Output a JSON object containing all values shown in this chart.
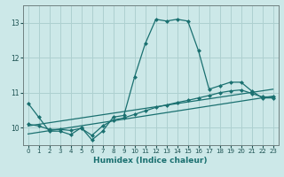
{
  "title": "",
  "xlabel": "Humidex (Indice chaleur)",
  "bg_color": "#cce8e8",
  "line_color": "#1a7070",
  "xlim": [
    -0.5,
    23.5
  ],
  "ylim": [
    9.5,
    13.5
  ],
  "yticks": [
    10,
    11,
    12,
    13
  ],
  "xticks": [
    0,
    1,
    2,
    3,
    4,
    5,
    6,
    7,
    8,
    9,
    10,
    11,
    12,
    13,
    14,
    15,
    16,
    17,
    18,
    19,
    20,
    21,
    22,
    23
  ],
  "main_x": [
    0,
    1,
    2,
    3,
    4,
    5,
    6,
    7,
    8,
    9,
    10,
    11,
    12,
    13,
    14,
    15,
    16,
    17,
    18,
    19,
    20,
    21,
    22,
    23
  ],
  "main_y": [
    10.7,
    10.3,
    9.9,
    9.9,
    9.8,
    10.0,
    9.65,
    9.9,
    10.3,
    10.35,
    11.45,
    12.4,
    13.1,
    13.05,
    13.1,
    13.05,
    12.2,
    11.1,
    11.2,
    11.3,
    11.3,
    11.05,
    10.85,
    10.85
  ],
  "line2_x": [
    0,
    1,
    2,
    3,
    4,
    5,
    6,
    7,
    8,
    9,
    10,
    11,
    12,
    13,
    14,
    15,
    16,
    17,
    18,
    19,
    20,
    21,
    22,
    23
  ],
  "line2_y": [
    10.1,
    10.05,
    9.95,
    9.95,
    9.92,
    9.98,
    9.78,
    10.05,
    10.22,
    10.28,
    10.38,
    10.48,
    10.58,
    10.65,
    10.72,
    10.78,
    10.85,
    10.92,
    11.0,
    11.05,
    11.08,
    10.98,
    10.88,
    10.88
  ],
  "line3_x": [
    0,
    23
  ],
  "line3_y": [
    9.82,
    10.9
  ],
  "line4_x": [
    0,
    23
  ],
  "line4_y": [
    10.05,
    11.1
  ],
  "grid_color": "#aed0d0",
  "marker_size": 2.5,
  "line_width": 0.9
}
